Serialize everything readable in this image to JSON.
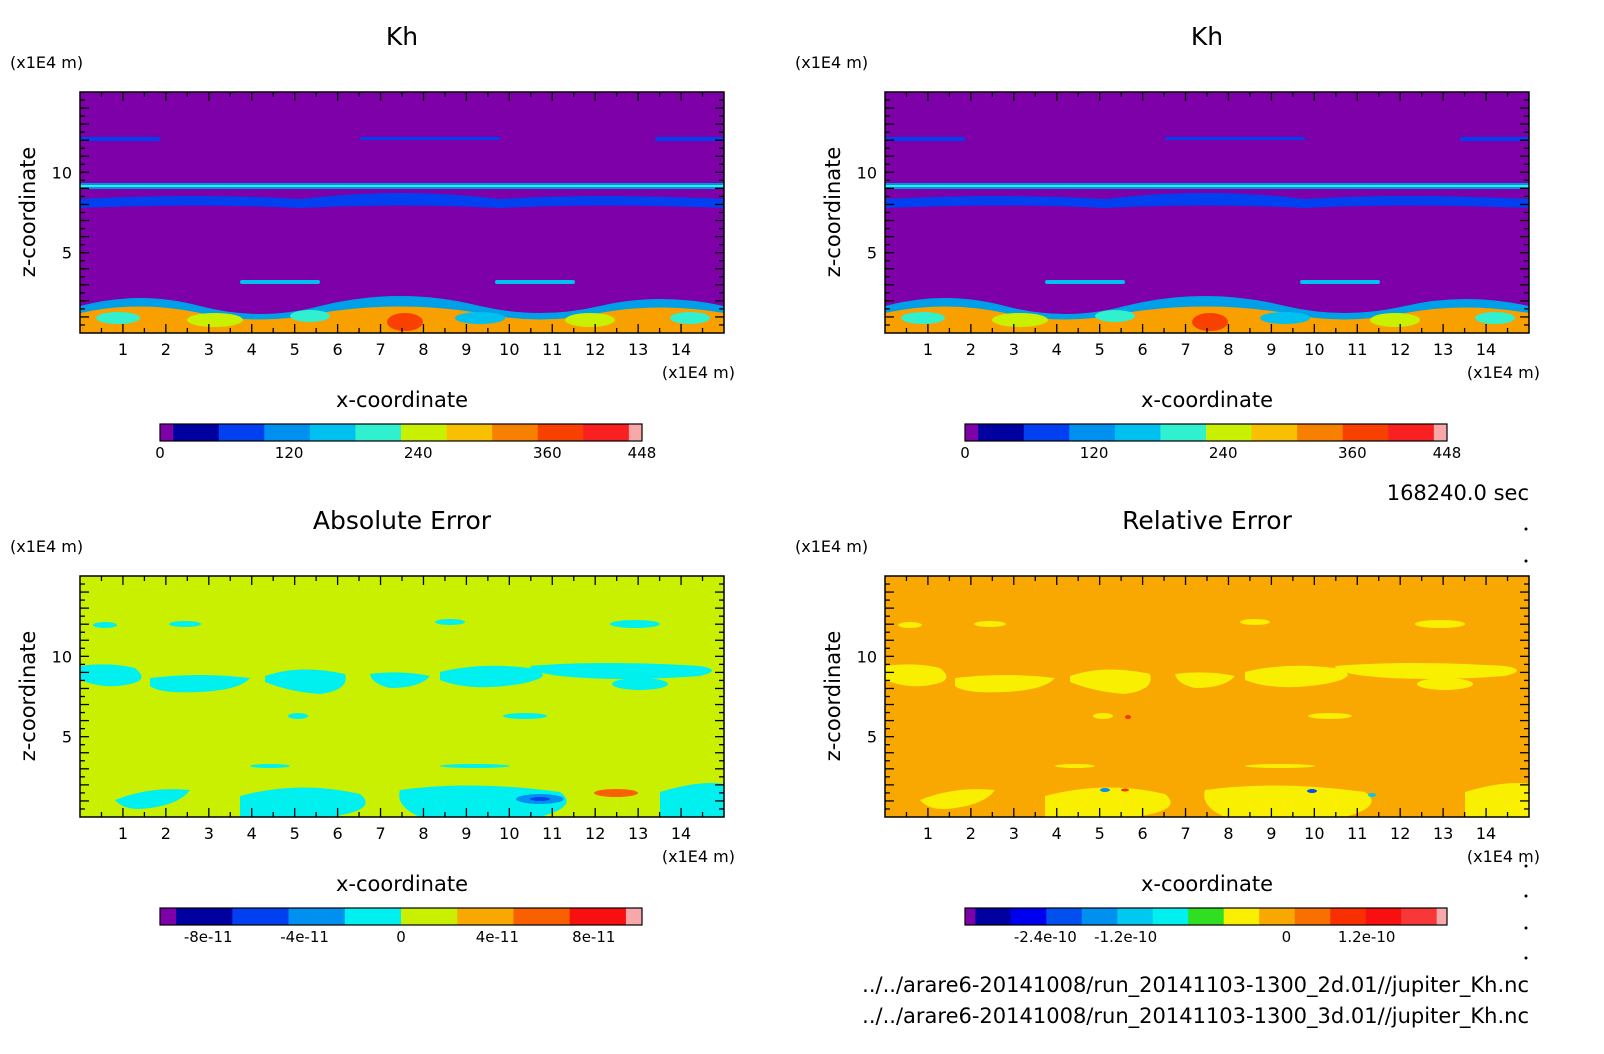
{
  "time_label": "168240.0 sec",
  "files": [
    "../../arare6-20141008/run_20141103-1300_2d.01//jupiter_Kh.nc",
    "../../arare6-20141008/run_20141103-1300_3d.01//jupiter_Kh.nc"
  ],
  "chart_data": [
    {
      "type": "heatmap",
      "title": "Kh",
      "xlabel": "x-coordinate",
      "ylabel": "z-coordinate",
      "x_unit": "(x1E4 m)",
      "z_unit": "(x1E4 m)",
      "xlim": [
        0,
        15
      ],
      "zlim": [
        0,
        15
      ],
      "x_ticks": [
        1,
        2,
        3,
        4,
        5,
        6,
        7,
        8,
        9,
        10,
        11,
        12,
        13,
        14
      ],
      "z_ticks": [
        5,
        10
      ],
      "colorbar": {
        "colors": [
          "#7d00a8",
          "#0000a0",
          "#0040f0",
          "#0090f0",
          "#00c0f0",
          "#30f0d0",
          "#c8f000",
          "#f8c000",
          "#f88000",
          "#f84000",
          "#f82020",
          "#f8a8a8"
        ],
        "tick_values": [
          "0",
          "120",
          "240",
          "360",
          "448"
        ]
      }
    },
    {
      "type": "heatmap",
      "title": "Kh",
      "xlabel": "x-coordinate",
      "ylabel": "z-coordinate",
      "x_unit": "(x1E4 m)",
      "z_unit": "(x1E4 m)",
      "xlim": [
        0,
        15
      ],
      "zlim": [
        0,
        15
      ],
      "x_ticks": [
        1,
        2,
        3,
        4,
        5,
        6,
        7,
        8,
        9,
        10,
        11,
        12,
        13,
        14
      ],
      "z_ticks": [
        5,
        10
      ],
      "colorbar": {
        "colors": [
          "#7d00a8",
          "#0000a0",
          "#0040f0",
          "#0090f0",
          "#00c0f0",
          "#30f0d0",
          "#c8f000",
          "#f8c000",
          "#f88000",
          "#f84000",
          "#f82020",
          "#f8a8a8"
        ],
        "tick_values": [
          "0",
          "120",
          "240",
          "360",
          "448"
        ]
      }
    },
    {
      "type": "heatmap",
      "title": "Absolute Error",
      "xlabel": "x-coordinate",
      "ylabel": "z-coordinate",
      "x_unit": "(x1E4 m)",
      "z_unit": "(x1E4 m)",
      "xlim": [
        0,
        15
      ],
      "zlim": [
        0,
        15
      ],
      "x_ticks": [
        1,
        2,
        3,
        4,
        5,
        6,
        7,
        8,
        9,
        10,
        11,
        12,
        13,
        14
      ],
      "z_ticks": [
        5,
        10
      ],
      "colorbar": {
        "colors": [
          "#7d00a8",
          "#0000a0",
          "#0040f0",
          "#0090f0",
          "#00f0f0",
          "#c8f000",
          "#f8a800",
          "#f86000",
          "#f81010",
          "#f8a8a8"
        ],
        "tick_values": [
          "-8e-11",
          "-4e-11",
          "0",
          "4e-11",
          "8e-11"
        ]
      }
    },
    {
      "type": "heatmap",
      "title": "Relative Error",
      "xlabel": "x-coordinate",
      "ylabel": "z-coordinate",
      "x_unit": "(x1E4 m)",
      "z_unit": "(x1E4 m)",
      "xlim": [
        0,
        15
      ],
      "zlim": [
        0,
        15
      ],
      "x_ticks": [
        1,
        2,
        3,
        4,
        5,
        6,
        7,
        8,
        9,
        10,
        11,
        12,
        13,
        14
      ],
      "z_ticks": [
        5,
        10
      ],
      "colorbar": {
        "colors": [
          "#7d00a8",
          "#0000a0",
          "#0000f0",
          "#0050f0",
          "#0090f0",
          "#00c8f0",
          "#00f0f0",
          "#30e020",
          "#f8f000",
          "#f8a800",
          "#f87000",
          "#f83000",
          "#f81010",
          "#f83838",
          "#f8a8a8"
        ],
        "tick_values": [
          "-2.4e-10",
          "-1.2e-10",
          "0",
          "1.2e-10"
        ]
      }
    }
  ]
}
